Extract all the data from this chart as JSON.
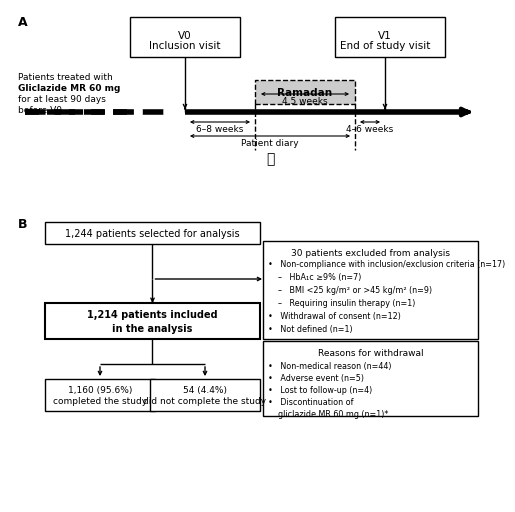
{
  "bg_color": "#ffffff",
  "panel_a_label": "A",
  "panel_b_label": "B",
  "v0_text": "V0\nInclusion visit",
  "v1_text": "V1\nEnd of study visit",
  "patients_line1": "Patients treated with",
  "patients_line2": "Gliclazide MR 60 mg",
  "patients_line3": "for at least 90 days",
  "patients_line4": "before V0",
  "ramadan_text": "Ramadan",
  "weeks_68": "6–8 weeks",
  "weeks_45": "4.5 weeks",
  "weeks_46": "4–6 weeks",
  "patient_diary": "Patient diary",
  "box1_text": "1,244 patients selected for analysis",
  "excl_title": "30 patients excluded from analysis",
  "excl_line1": "•   Non-compliance with inclusion/exclusion criteria (n=17)",
  "excl_line2": "    –   HbA₁c ≥9% (n=7)",
  "excl_line3": "    –   BMI <25 kg/m² or >45 kg/m² (n=9)",
  "excl_line4": "    –   Requiring insulin therapy (n=1)",
  "excl_line5": "•   Withdrawal of consent (n=12)",
  "excl_line6": "•   Not defined (n=1)",
  "box2_text": "1,214 patients included\nin the analysis",
  "wd_title": "Reasons for withdrawal",
  "wd_line1": "•   Non-medical reason (n=44)",
  "wd_line2": "•   Adverse event (n=5)",
  "wd_line3": "•   Lost to follow-up (n=4)",
  "wd_line4": "•   Discontinuation of",
  "wd_line5": "    gliclazide MR 60 mg (n=1)*",
  "box3_text": "1,160 (95.6%)\ncompleted the study",
  "box4_text": "54 (4.4%)\ndid not complete the study"
}
